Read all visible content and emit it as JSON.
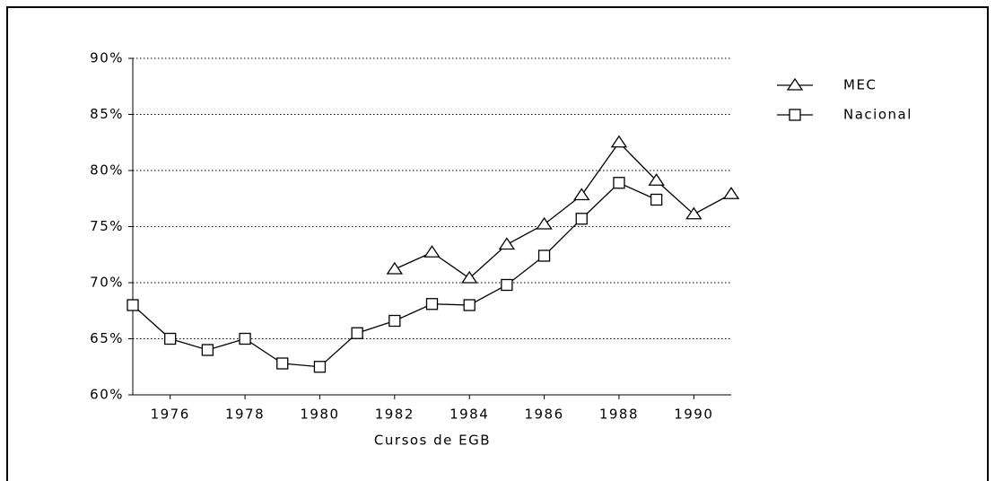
{
  "chart_data": {
    "type": "line",
    "x": [
      1975,
      1976,
      1977,
      1978,
      1979,
      1980,
      1981,
      1982,
      1983,
      1984,
      1985,
      1986,
      1987,
      1988,
      1989,
      1990,
      1991
    ],
    "series": [
      {
        "name": "MEC",
        "color": "#000000",
        "marker": "triangle",
        "values": [
          null,
          null,
          null,
          null,
          null,
          null,
          null,
          71.2,
          72.7,
          70.4,
          73.4,
          75.2,
          77.8,
          82.5,
          79.1,
          76.1,
          77.9
        ]
      },
      {
        "name": "Nacional",
        "color": "#000000",
        "marker": "square",
        "values": [
          68.0,
          65.0,
          64.0,
          65.0,
          62.8,
          62.5,
          65.5,
          66.6,
          68.1,
          68.0,
          69.8,
          72.4,
          75.7,
          78.9,
          77.4,
          null,
          null
        ]
      }
    ],
    "xlabel": "Cursos de EGB",
    "xlim": [
      1975,
      1991
    ],
    "xticks": [
      1976,
      1978,
      1980,
      1982,
      1984,
      1986,
      1988,
      1990
    ],
    "ylim": [
      60,
      90
    ],
    "yticks": [
      {
        "value": 60,
        "label": "60%"
      },
      {
        "value": 65,
        "label": "65%"
      },
      {
        "value": 70,
        "label": "70%"
      },
      {
        "value": 75,
        "label": "75%"
      },
      {
        "value": 80,
        "label": "80%"
      },
      {
        "value": 85,
        "label": "85%"
      },
      {
        "value": 90,
        "label": "90%"
      }
    ],
    "grid": true,
    "legend": "upper right"
  }
}
